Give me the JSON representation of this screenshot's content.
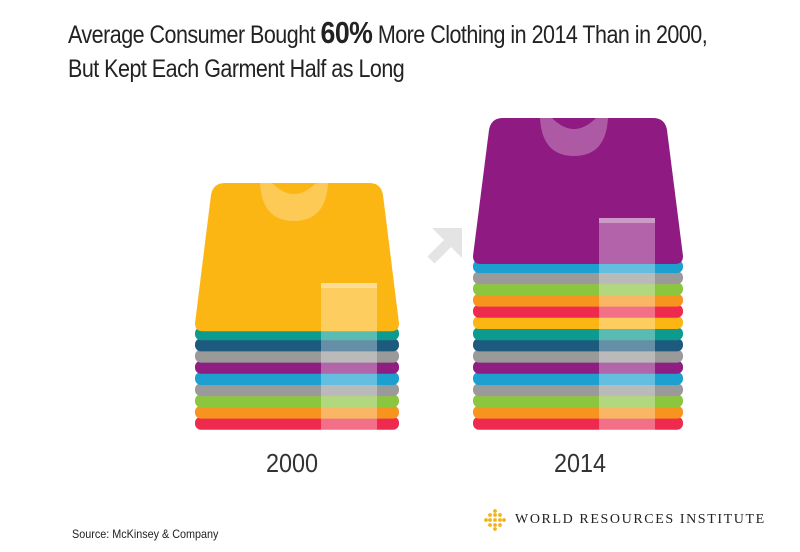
{
  "title": {
    "line1_before": "Average Consumer Bought ",
    "line1_highlight": "60%",
    "line1_after": " More Clothing in 2014 Than in 2000,",
    "line2": "But Kept Each Garment Half as Long"
  },
  "stacks": [
    {
      "year": "2000",
      "shirt_color": "#FCB614",
      "fold_colors": [
        "#0C9B8E",
        "#1E5A7E",
        "#9A9A9A",
        "#8E1E82",
        "#1BA0D0",
        "#9A9A9A",
        "#8CC63F",
        "#F7941D",
        "#EE2A4E"
      ]
    },
    {
      "year": "2014",
      "shirt_color": "#8E1A82",
      "fold_colors": [
        "#1BA0D0",
        "#9A9A9A",
        "#8CC63F",
        "#F7941D",
        "#EE2A4E",
        "#FCB614",
        "#0C9B8E",
        "#1E5A7E",
        "#9A9A9A",
        "#8E1E82",
        "#1BA0D0",
        "#9A9A9A",
        "#8CC63F",
        "#F7941D",
        "#EE2A4E"
      ]
    }
  ],
  "arrow_icon": "arrow-up-right-icon",
  "source": "Source: McKinsey & Company",
  "logo": {
    "icon": "wri-logo-icon",
    "text": "WORLD RESOURCES INSTITUTE",
    "color": "#F3B21A"
  }
}
